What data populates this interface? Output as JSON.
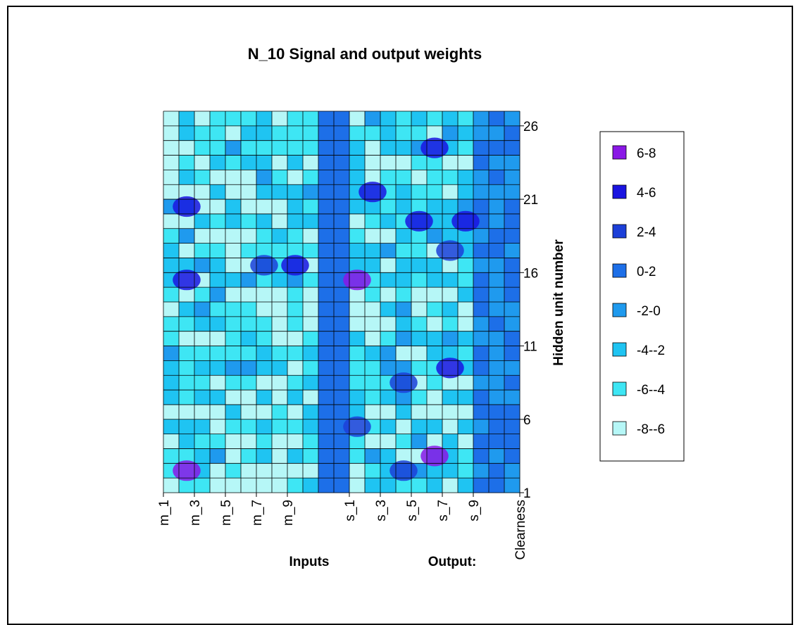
{
  "chart_data": {
    "type": "heatmap",
    "title": "N_10 Signal and output weights",
    "xlabel_inputs": "Inputs",
    "xlabel_output": "Output:",
    "ylabel": "Hidden unit number",
    "x_tick_labels": [
      "m_1",
      "m_3",
      "m_5",
      "m_7",
      "m_9",
      "s_1",
      "s_3",
      "s_5",
      "s_7",
      "s_9",
      "Clearness"
    ],
    "y_tick_labels": [
      "1",
      "6",
      "11",
      "16",
      "21",
      "26"
    ],
    "y_range": [
      1,
      27
    ],
    "legend": [
      {
        "label": "6-8",
        "color": "#8a18e6"
      },
      {
        "label": "4-6",
        "color": "#1a14e0"
      },
      {
        "label": "2-4",
        "color": "#1c3fd8"
      },
      {
        "label": "0-2",
        "color": "#1d6fe8"
      },
      {
        "label": "-2-0",
        "color": "#1f9aee"
      },
      {
        "label": "-4--2",
        "color": "#1fc4f2"
      },
      {
        "label": "-6--4",
        "color": "#3ee6f4"
      },
      {
        "label": "-8--6",
        "color": "#b6f7f7"
      }
    ],
    "grid": true,
    "legend_position": "right"
  }
}
